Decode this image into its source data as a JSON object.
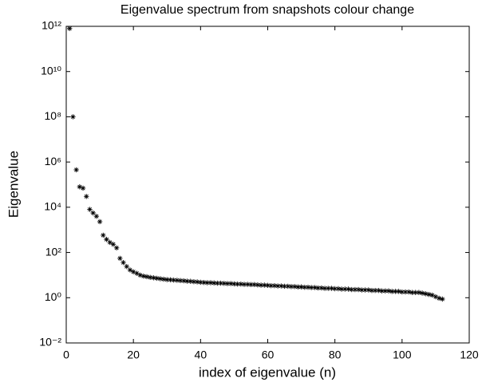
{
  "chart_data": {
    "type": "scatter",
    "title": "Eigenvalue spectrum from snapshots colour change",
    "x_label": "index of eigenvalue (n)",
    "y_label": "Eigenvalue",
    "log_y": true,
    "marker": "*",
    "color": "#000000",
    "xlim": [
      0,
      120
    ],
    "xticks": [
      0,
      20,
      40,
      60,
      80,
      100,
      120
    ],
    "ylim": [
      0.01,
      1000000000000
    ],
    "yticks": [
      {
        "value": 0.01,
        "label": "10⁻²"
      },
      {
        "value": 1,
        "label": "10⁰"
      },
      {
        "value": 100,
        "label": "10²"
      },
      {
        "value": 10000,
        "label": "10⁴"
      },
      {
        "value": 1000000,
        "label": "10⁶"
      },
      {
        "value": 100000000,
        "label": "10⁸"
      },
      {
        "value": 10000000000,
        "label": "10¹⁰"
      },
      {
        "value": 1000000000000,
        "label": "10¹²"
      }
    ],
    "x": [
      1,
      2,
      3,
      4,
      5,
      6,
      7,
      8,
      9,
      10,
      11,
      12,
      13,
      14,
      15,
      16,
      17,
      18,
      19,
      20,
      21,
      22,
      23,
      24,
      25,
      26,
      27,
      28,
      29,
      30,
      31,
      32,
      33,
      34,
      35,
      36,
      37,
      38,
      39,
      40,
      41,
      42,
      43,
      44,
      45,
      46,
      47,
      48,
      49,
      50,
      51,
      52,
      53,
      54,
      55,
      56,
      57,
      58,
      59,
      60,
      61,
      62,
      63,
      64,
      65,
      66,
      67,
      68,
      69,
      70,
      71,
      72,
      73,
      74,
      75,
      76,
      77,
      78,
      79,
      80,
      81,
      82,
      83,
      84,
      85,
      86,
      87,
      88,
      89,
      90,
      91,
      92,
      93,
      94,
      95,
      96,
      97,
      98,
      99,
      100,
      101,
      102,
      103,
      104,
      105,
      106,
      107,
      108,
      109,
      110,
      111,
      112
    ],
    "values": [
      800000000000,
      100000000,
      450000,
      80000,
      70000,
      30000,
      8000,
      5600,
      4000,
      2300,
      580,
      380,
      280,
      230,
      160,
      55,
      36,
      24,
      17,
      14,
      12,
      10,
      9,
      8.5,
      7.9,
      7.6,
      7.2,
      6.9,
      6.6,
      6.3,
      6.2,
      6.0,
      5.9,
      5.7,
      5.6,
      5.4,
      5.3,
      5.1,
      5.0,
      4.8,
      4.7,
      4.6,
      4.6,
      4.5,
      4.4,
      4.4,
      4.3,
      4.2,
      4.2,
      4.1,
      4.0,
      4.0,
      3.9,
      3.9,
      3.8,
      3.8,
      3.7,
      3.6,
      3.6,
      3.5,
      3.4,
      3.4,
      3.3,
      3.3,
      3.2,
      3.2,
      3.1,
      3.1,
      3.0,
      3.0,
      2.9,
      2.9,
      2.8,
      2.8,
      2.7,
      2.7,
      2.6,
      2.6,
      2.6,
      2.5,
      2.5,
      2.4,
      2.4,
      2.4,
      2.3,
      2.3,
      2.3,
      2.2,
      2.2,
      2.2,
      2.1,
      2.1,
      2.1,
      2.0,
      2.0,
      2.0,
      1.9,
      1.9,
      1.9,
      1.8,
      1.8,
      1.8,
      1.7,
      1.7,
      1.7,
      1.6,
      1.5,
      1.4,
      1.3,
      1.1,
      0.95,
      0.87
    ]
  }
}
